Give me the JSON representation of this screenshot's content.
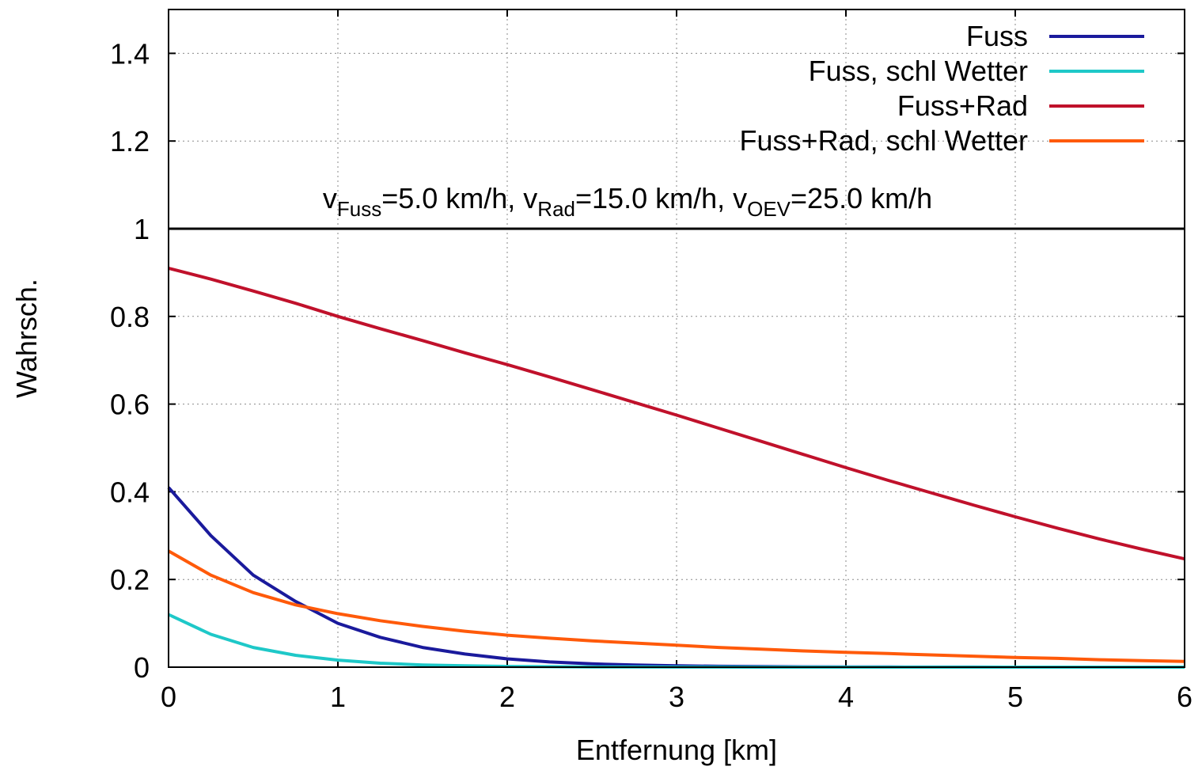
{
  "chart_data": {
    "type": "line",
    "xlabel": "Entfernung [km]",
    "ylabel": "Wahrsch.",
    "xlim": [
      0,
      6
    ],
    "ylim": [
      0,
      1.5
    ],
    "x_ticks": [
      "0",
      "1",
      "2",
      "3",
      "4",
      "5",
      "6"
    ],
    "y_ticks": [
      "0",
      "0.2",
      "0.4",
      "0.6",
      "0.8",
      "1",
      "1.2",
      "1.4"
    ],
    "grid": true,
    "legend_position": "top-right",
    "annotation": {
      "y": 1.0,
      "parts": [
        {
          "t": "v",
          "sub": false
        },
        {
          "t": "Fuss",
          "sub": true
        },
        {
          "t": "=5.0 km/h, ",
          "sub": false
        },
        {
          "t": "v",
          "sub": false
        },
        {
          "t": "Rad",
          "sub": true
        },
        {
          "t": "=15.0 km/h, ",
          "sub": false
        },
        {
          "t": "v",
          "sub": false
        },
        {
          "t": "OEV",
          "sub": true
        },
        {
          "t": "=25.0 km/h",
          "sub": false
        }
      ]
    },
    "reference_line": {
      "y": 1.0,
      "color": "#000000"
    },
    "x": [
      0,
      0.25,
      0.5,
      0.75,
      1.0,
      1.25,
      1.5,
      1.75,
      2.0,
      2.25,
      2.5,
      2.75,
      3.0,
      3.25,
      3.5,
      3.75,
      4.0,
      4.25,
      4.5,
      4.75,
      5.0,
      5.25,
      5.5,
      5.75,
      6.0
    ],
    "series": [
      {
        "name": "Fuss",
        "color": "#1a1a9c",
        "values": [
          0.41,
          0.3,
          0.21,
          0.15,
          0.1,
          0.068,
          0.045,
          0.03,
          0.019,
          0.012,
          0.0075,
          0.0048,
          0.003,
          0.0019,
          0.0012,
          0.0008,
          0.0005,
          0.0003,
          0.0002,
          0.00013,
          8e-05,
          5e-05,
          3e-05,
          2e-05,
          1e-05
        ]
      },
      {
        "name": "Fuss, schl Wetter",
        "color": "#1ec8c8",
        "values": [
          0.12,
          0.075,
          0.045,
          0.027,
          0.016,
          0.009,
          0.005,
          0.003,
          0.0017,
          0.001,
          0.0006,
          0.0003,
          0.0002,
          0.0001,
          6e-05,
          3e-05,
          2e-05,
          1e-05,
          1e-05,
          0,
          0,
          0,
          0,
          0,
          0
        ]
      },
      {
        "name": "Fuss+Rad",
        "color": "#c0112b",
        "values": [
          0.91,
          0.885,
          0.858,
          0.83,
          0.8,
          0.772,
          0.745,
          0.717,
          0.69,
          0.662,
          0.633,
          0.604,
          0.575,
          0.545,
          0.515,
          0.485,
          0.455,
          0.426,
          0.398,
          0.37,
          0.343,
          0.317,
          0.292,
          0.269,
          0.247
        ]
      },
      {
        "name": "Fuss+Rad, schl Wetter",
        "color": "#ff5a0a",
        "values": [
          0.265,
          0.21,
          0.17,
          0.142,
          0.122,
          0.106,
          0.093,
          0.082,
          0.073,
          0.066,
          0.06,
          0.055,
          0.05,
          0.045,
          0.041,
          0.037,
          0.034,
          0.031,
          0.028,
          0.025,
          0.022,
          0.02,
          0.017,
          0.015,
          0.013
        ]
      }
    ]
  }
}
